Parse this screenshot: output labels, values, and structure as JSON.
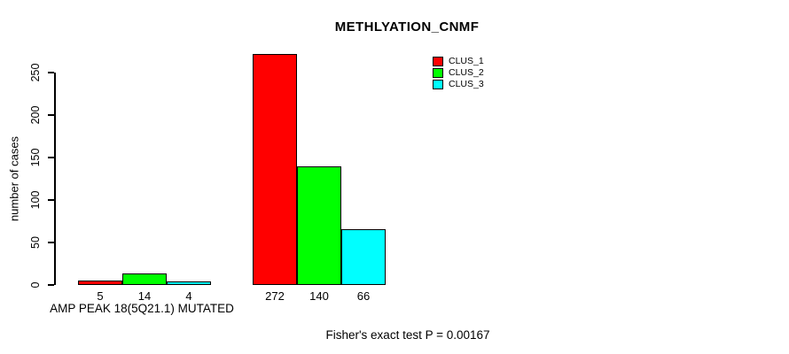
{
  "title": "METHLYATION_CNMF",
  "caption": "Fisher's exact test P = 0.00167",
  "legend": [
    {
      "label": "CLUS_1",
      "color": "#FF0000"
    },
    {
      "label": "CLUS_2",
      "color": "#00FF00"
    },
    {
      "label": "CLUS_3",
      "color": "#00FFFF"
    }
  ],
  "chart_data": {
    "type": "bar",
    "title": "METHLYATION_CNMF",
    "xlabel": "",
    "ylabel": "number of cases",
    "ylim": [
      0,
      250
    ],
    "yticks": [
      0,
      50,
      100,
      150,
      200,
      250
    ],
    "grid": false,
    "legend_position": "top-right",
    "bar_border_color": "#000000",
    "series": [
      {
        "name": "CLUS_1",
        "color": "#FF0000",
        "values": [
          5,
          272
        ]
      },
      {
        "name": "CLUS_2",
        "color": "#00FF00",
        "values": [
          14,
          140
        ]
      },
      {
        "name": "CLUS_3",
        "color": "#00FFFF",
        "values": [
          4,
          66
        ]
      }
    ],
    "groups": [
      {
        "label": "AMP PEAK 18(5Q21.1) MUTATED",
        "values": [
          5,
          14,
          4
        ]
      },
      {
        "label": "",
        "values": [
          272,
          140,
          66
        ]
      }
    ],
    "bar_value_labels": [
      5,
      14,
      4,
      272,
      140,
      66
    ],
    "annotation": "Fisher's exact test P = 0.00167"
  }
}
